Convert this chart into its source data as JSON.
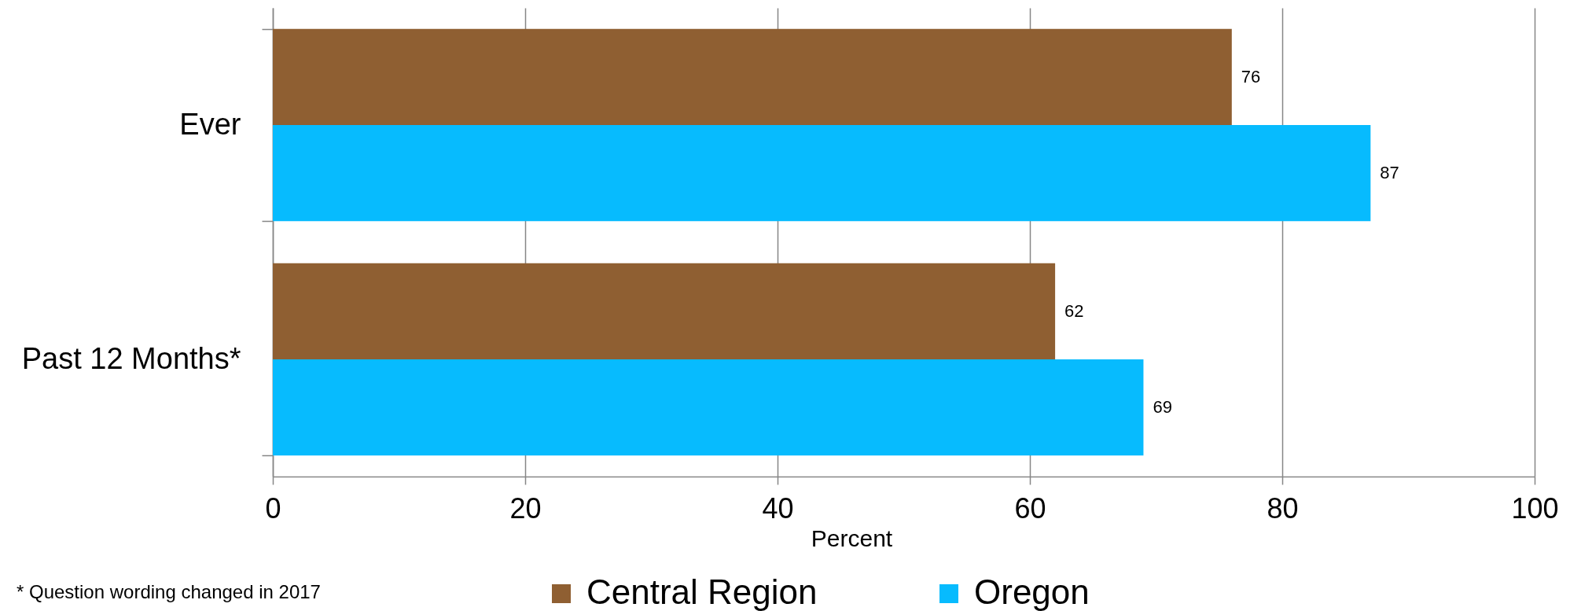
{
  "chart_data": {
    "type": "bar",
    "orientation": "horizontal",
    "categories": [
      "Ever",
      "Past 12 Months*"
    ],
    "series": [
      {
        "name": "Central Region",
        "color": "#8f5f32",
        "values": [
          76,
          62
        ]
      },
      {
        "name": "Oregon",
        "color": "#07bbfe",
        "values": [
          87,
          69
        ]
      }
    ],
    "xlabel": "Percent",
    "xlim": [
      0,
      100
    ],
    "xticks": [
      0,
      20,
      40,
      60,
      80,
      100
    ],
    "grid": "x",
    "legend": "bottom",
    "data_labels": true,
    "annotations": [
      "* Question wording changed in 2017"
    ]
  }
}
